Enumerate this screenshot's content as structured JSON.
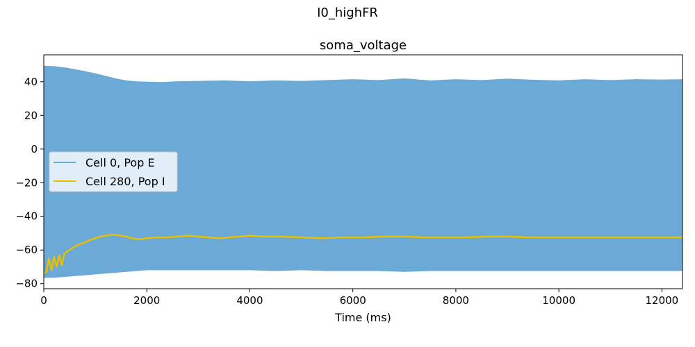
{
  "figure": {
    "suptitle": "I0_highFR"
  },
  "chart_data": {
    "type": "line",
    "title": "soma_voltage",
    "xlabel": "Time (ms)",
    "ylabel": "",
    "xlim": [
      0,
      12400
    ],
    "ylim": [
      -83,
      56
    ],
    "xticks": [
      0,
      2000,
      4000,
      6000,
      8000,
      10000,
      12000
    ],
    "xtick_labels": [
      "0",
      "2000",
      "4000",
      "6000",
      "8000",
      "10000",
      "12000"
    ],
    "yticks": [
      -80,
      -60,
      -40,
      -20,
      0,
      20,
      40
    ],
    "ytick_labels": [
      "−80",
      "−60",
      "−40",
      "−20",
      "0",
      "20",
      "40"
    ],
    "grid": false,
    "legend": {
      "placement": "center-left"
    },
    "series": [
      {
        "name": "Cell 0, Pop E",
        "color": "#6baad6",
        "style": "dense-oscillation-envelope",
        "upper_envelope": {
          "x": [
            0,
            200,
            400,
            600,
            800,
            1000,
            1200,
            1400,
            1600,
            1800,
            2000,
            2300,
            2600,
            3000,
            3500,
            4000,
            4500,
            5000,
            5500,
            6000,
            6500,
            7000,
            7500,
            8000,
            8500,
            9000,
            9500,
            10000,
            10500,
            11000,
            11500,
            12000,
            12400
          ],
          "y": [
            49.5,
            49.3,
            48.5,
            47.5,
            46.3,
            45,
            43.5,
            42,
            40.8,
            40.2,
            40,
            39.8,
            40.3,
            40.5,
            40.8,
            40.3,
            40.8,
            40.5,
            41,
            41.5,
            41,
            42,
            40.8,
            41.5,
            41,
            41.8,
            41.2,
            40.8,
            41.5,
            41,
            41.5,
            41.3,
            41.5
          ]
        },
        "lower_envelope": {
          "x": [
            0,
            200,
            400,
            600,
            800,
            1000,
            1200,
            1400,
            1600,
            1800,
            2000,
            2300,
            2600,
            3000,
            3500,
            4000,
            4500,
            5000,
            5500,
            6000,
            6500,
            7000,
            7500,
            8000,
            8500,
            9000,
            9500,
            10000,
            10500,
            11000,
            11500,
            12000,
            12400
          ],
          "y": [
            -76.5,
            -76.5,
            -76,
            -75.5,
            -75,
            -74.5,
            -74,
            -73.5,
            -73,
            -72.5,
            -72,
            -72,
            -72,
            -72,
            -72,
            -72,
            -72.5,
            -72,
            -72.5,
            -72.5,
            -72.5,
            -73,
            -72.5,
            -72.5,
            -72.5,
            -72.5,
            -72.5,
            -72.5,
            -72.5,
            -72.5,
            -72.5,
            -72.5,
            -72.5
          ]
        }
      },
      {
        "name": "Cell 280, Pop I",
        "color": "#e8c000",
        "x": [
          0,
          50,
          100,
          150,
          200,
          250,
          300,
          350,
          400,
          500,
          600,
          700,
          800,
          900,
          1000,
          1100,
          1200,
          1300,
          1400,
          1500,
          1600,
          1700,
          1800,
          1900,
          2000,
          2200,
          2400,
          2600,
          2800,
          3000,
          3200,
          3400,
          3600,
          3800,
          4000,
          4300,
          4600,
          5000,
          5400,
          5800,
          6200,
          6600,
          7000,
          7400,
          7800,
          8200,
          8600,
          9000,
          9400,
          9800,
          10200,
          10600,
          11000,
          11400,
          11800,
          12200,
          12400
        ],
        "y": [
          -74,
          -73,
          -65,
          -72,
          -64,
          -70,
          -63,
          -69,
          -62,
          -60,
          -58,
          -56.5,
          -55.5,
          -54,
          -53,
          -52,
          -51.5,
          -51,
          -51,
          -51.5,
          -52,
          -53,
          -53.5,
          -53.5,
          -53,
          -52.5,
          -52.5,
          -52,
          -51.5,
          -52,
          -52.5,
          -53,
          -52.5,
          -52,
          -51.5,
          -52,
          -52,
          -52.5,
          -53,
          -52.5,
          -52.5,
          -52,
          -52,
          -52.5,
          -52.5,
          -52.5,
          -52,
          -52,
          -52.5,
          -52.5,
          -52.5,
          -52.5,
          -52.5,
          -52.5,
          -52.5,
          -52.5,
          -52.5
        ]
      }
    ]
  }
}
